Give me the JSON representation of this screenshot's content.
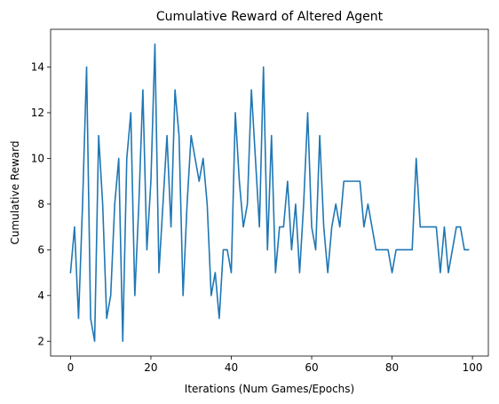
{
  "chart_data": {
    "type": "line",
    "title": "Cumulative Reward of Altered Agent",
    "xlabel": "Iterations (Num Games/Epochs)",
    "ylabel": "Cumulative Reward",
    "xlim": [
      -4.95,
      103.95
    ],
    "ylim": [
      1.35,
      15.65
    ],
    "xticks": [
      0,
      20,
      40,
      60,
      80,
      100
    ],
    "yticks": [
      2,
      4,
      6,
      8,
      10,
      12,
      14
    ],
    "grid": false,
    "line_color": "#1f77b4",
    "series": [
      {
        "x": [
          0,
          1,
          2,
          3,
          4,
          5,
          6,
          7,
          8,
          9,
          10,
          11,
          12,
          13,
          14,
          15,
          16,
          17,
          18,
          19,
          20,
          21,
          22,
          23,
          24,
          25,
          26,
          27,
          28,
          29,
          30,
          31,
          32,
          33,
          34,
          35,
          36,
          37,
          38,
          39,
          40,
          41,
          42,
          43,
          44,
          45,
          46,
          47,
          48,
          49,
          50,
          51,
          52,
          53,
          54,
          55,
          56,
          57,
          58,
          59,
          60,
          61,
          62,
          63,
          64,
          65,
          66,
          67,
          68,
          69,
          70,
          71,
          72,
          73,
          74,
          75,
          76,
          77,
          78,
          79,
          80,
          81,
          82,
          83,
          84,
          85,
          86,
          87,
          88,
          89,
          90,
          91,
          92,
          93,
          94,
          95,
          96,
          97,
          98,
          99
        ],
        "values": [
          5,
          7,
          3,
          8,
          14,
          3,
          2,
          11,
          8,
          3,
          4,
          8,
          10,
          2,
          10,
          12,
          4,
          8,
          13,
          6,
          9,
          15,
          5,
          8,
          11,
          7,
          13,
          11,
          4,
          8,
          11,
          10,
          9,
          10,
          8,
          4,
          5,
          3,
          6,
          6,
          5,
          12,
          9,
          7,
          8,
          13,
          10,
          7,
          14,
          6,
          11,
          5,
          7,
          7,
          9,
          6,
          8,
          5,
          8,
          12,
          7,
          6,
          11,
          7,
          5,
          7,
          8,
          7,
          9,
          9,
          9,
          9,
          9,
          7,
          8,
          7,
          6,
          6,
          6,
          6,
          5,
          6,
          6,
          6,
          6,
          6,
          10,
          7,
          7,
          7,
          7,
          7,
          5,
          7,
          5,
          6,
          7,
          7,
          6,
          6
        ]
      }
    ]
  }
}
